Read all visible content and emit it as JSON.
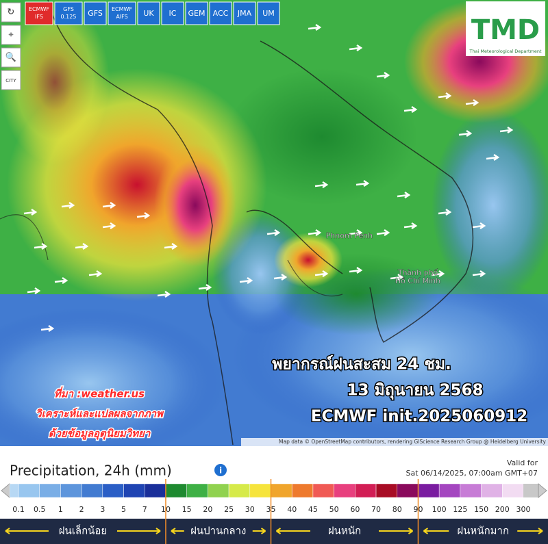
{
  "toolbar": {
    "models": [
      "ECMWF IFS",
      "GFS 0.125",
      "GFS",
      "ECMWF AIFS",
      "UK",
      "IC",
      "GEM",
      "ACC",
      "JMA",
      "UM"
    ],
    "city": "CITY"
  },
  "logo": {
    "title": "TMD",
    "subtitle": "Thai Meteorological Department"
  },
  "map": {
    "places": [
      "Phnom Penh",
      "Thành phố Hồ Chí Minh"
    ],
    "overlay": [
      "พยากรณ์ฝนสะสม 24 ชม.",
      "13 มิถุนายน 2568",
      "ECMWF init.2025060912"
    ],
    "source": [
      "ที่มา :weather.us",
      "วิเคราะห์และแปลผลจากภาพ",
      "ด้วยข้อมูลอุตุนิยมวิทยา"
    ],
    "attribution": "Map data © OpenStreetMap contributors, rendering GIScience Research Group @ Heidelberg University"
  },
  "legend": {
    "title": "Precipitation, 24h (mm)",
    "valid_label": "Valid for",
    "valid_time": "Sat 06/14/2025, 07:00am GMT+07",
    "scale": [
      {
        "label": "0.1",
        "color": "#b7d8f4"
      },
      {
        "label": "0.5",
        "color": "#98c6ef"
      },
      {
        "label": "1",
        "color": "#7aaee6"
      },
      {
        "label": "2",
        "color": "#5d95dc"
      },
      {
        "label": "3",
        "color": "#427bd1"
      },
      {
        "label": "5",
        "color": "#2a5ec6"
      },
      {
        "label": "7",
        "color": "#1f44b3"
      },
      {
        "label": "10",
        "color": "#1a2f9a"
      },
      {
        "label": "15",
        "color": "#1e8a30"
      },
      {
        "label": "20",
        "color": "#3eb045"
      },
      {
        "label": "25",
        "color": "#90d24f"
      },
      {
        "label": "30",
        "color": "#d6ea4a"
      },
      {
        "label": "35",
        "color": "#f6e43c"
      },
      {
        "label": "40",
        "color": "#f0a52c"
      },
      {
        "label": "45",
        "color": "#ee7a2e"
      },
      {
        "label": "50",
        "color": "#f05a55"
      },
      {
        "label": "60",
        "color": "#e8407e"
      },
      {
        "label": "70",
        "color": "#d21e55"
      },
      {
        "label": "80",
        "color": "#a80c25"
      },
      {
        "label": "90",
        "color": "#8a0a5c"
      },
      {
        "label": "100",
        "color": "#7a1ca0"
      },
      {
        "label": "125",
        "color": "#a446c0"
      },
      {
        "label": "150",
        "color": "#c77cd6"
      },
      {
        "label": "200",
        "color": "#e0b2e6"
      },
      {
        "label": "300",
        "color": "#f2dcf2"
      }
    ],
    "categories": [
      "ฝนเล็กน้อย",
      "ฝนปานกลาง",
      "ฝนหนัก",
      "ฝนหนักมาก"
    ]
  }
}
